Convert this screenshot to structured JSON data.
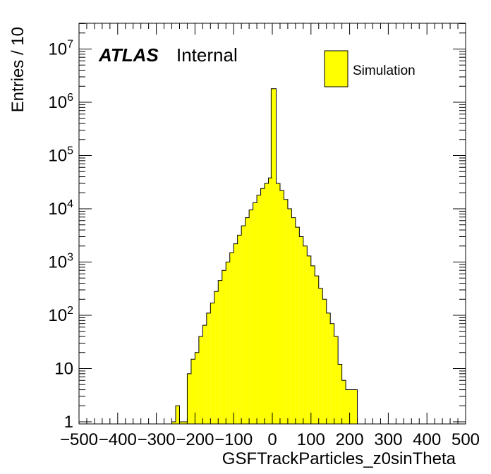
{
  "chart_data": {
    "type": "bar",
    "title": "",
    "xlabel": "GSFTrackParticles_z0sinTheta",
    "ylabel": "Entries / 10",
    "xlim": [
      -500,
      500
    ],
    "ylim": [
      0.8,
      30000000
    ],
    "log_y": true,
    "grid": false,
    "legend_position": "top-right",
    "fill_color": "#ffff00",
    "edge_color": "#000000",
    "x_tick_labels": [
      "−500",
      "−400",
      "−300",
      "−200",
      "−100",
      "0",
      "100",
      "200",
      "300",
      "400",
      "500"
    ],
    "x_tick_values": [
      -500,
      -400,
      -300,
      -200,
      -100,
      0,
      100,
      200,
      300,
      400,
      500
    ],
    "y_tick_labels": [
      {
        "value": 1,
        "base": "1",
        "exp": ""
      },
      {
        "value": 10,
        "base": "10",
        "exp": ""
      },
      {
        "value": 100,
        "base": "10",
        "exp": "2"
      },
      {
        "value": 1000,
        "base": "10",
        "exp": "3"
      },
      {
        "value": 10000,
        "base": "10",
        "exp": "4"
      },
      {
        "value": 100000,
        "base": "10",
        "exp": "5"
      },
      {
        "value": 1000000,
        "base": "10",
        "exp": "6"
      },
      {
        "value": 10000000,
        "base": "10",
        "exp": "7"
      }
    ],
    "bin_width": 10,
    "series": [
      {
        "name": "Simulation",
        "bins": [
          {
            "x_low": -260,
            "value": 1
          },
          {
            "x_low": -250,
            "value": 2
          },
          {
            "x_low": -240,
            "value": 1
          },
          {
            "x_low": -230,
            "value": 1
          },
          {
            "x_low": -220,
            "value": 8
          },
          {
            "x_low": -210,
            "value": 15
          },
          {
            "x_low": -200,
            "value": 20
          },
          {
            "x_low": -190,
            "value": 40
          },
          {
            "x_low": -180,
            "value": 65
          },
          {
            "x_low": -170,
            "value": 110
          },
          {
            "x_low": -160,
            "value": 170
          },
          {
            "x_low": -150,
            "value": 280
          },
          {
            "x_low": -140,
            "value": 450
          },
          {
            "x_low": -130,
            "value": 700
          },
          {
            "x_low": -120,
            "value": 1000
          },
          {
            "x_low": -110,
            "value": 1500
          },
          {
            "x_low": -100,
            "value": 2200
          },
          {
            "x_low": -90,
            "value": 3200
          },
          {
            "x_low": -80,
            "value": 4800
          },
          {
            "x_low": -70,
            "value": 6800
          },
          {
            "x_low": -60,
            "value": 9500
          },
          {
            "x_low": -50,
            "value": 13000
          },
          {
            "x_low": -40,
            "value": 18000
          },
          {
            "x_low": -30,
            "value": 24000
          },
          {
            "x_low": -20,
            "value": 30000
          },
          {
            "x_low": -10,
            "value": 38000
          },
          {
            "x_low": 0,
            "value": 1800000
          },
          {
            "x_low": 10,
            "value": 30000
          },
          {
            "x_low": 20,
            "value": 22000
          },
          {
            "x_low": 30,
            "value": 15000
          },
          {
            "x_low": 40,
            "value": 10000
          },
          {
            "x_low": 50,
            "value": 6800
          },
          {
            "x_low": 60,
            "value": 4500
          },
          {
            "x_low": 70,
            "value": 3000
          },
          {
            "x_low": 80,
            "value": 2000
          },
          {
            "x_low": 90,
            "value": 1300
          },
          {
            "x_low": 100,
            "value": 850
          },
          {
            "x_low": 110,
            "value": 550
          },
          {
            "x_low": 120,
            "value": 320
          },
          {
            "x_low": 130,
            "value": 200
          },
          {
            "x_low": 140,
            "value": 110
          },
          {
            "x_low": 150,
            "value": 70
          },
          {
            "x_low": 160,
            "value": 40
          },
          {
            "x_low": 170,
            "value": 12
          },
          {
            "x_low": 180,
            "value": 6
          },
          {
            "x_low": 190,
            "value": 4
          },
          {
            "x_low": 200,
            "value": 4
          },
          {
            "x_low": 210,
            "value": 4
          },
          {
            "x_low": 220,
            "value": 0
          }
        ],
        "central_spike": {
          "x_low": -10,
          "x_high": 0,
          "value": 38000,
          "spike_low": -3,
          "spike_high": 3,
          "spike_value": 1800000
        }
      }
    ],
    "annotations": {
      "atlas": "ATLAS",
      "internal": "Internal"
    }
  }
}
